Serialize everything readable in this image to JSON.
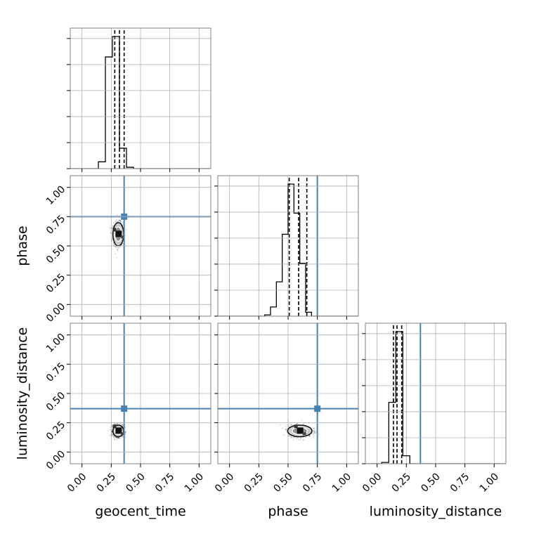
{
  "chart_data": {
    "type": "corner",
    "parameters": [
      "geocent_time",
      "phase",
      "luminosity_distance"
    ],
    "axis_labels": {
      "geocent_time": "geocent_time",
      "phase": "phase",
      "luminosity_distance": "luminosity_distance"
    },
    "xlim": [
      -0.1,
      1.1
    ],
    "ylim": [
      -0.1,
      1.1
    ],
    "tick_values": [
      0.0,
      0.25,
      0.5,
      0.75,
      1.0
    ],
    "tick_labels": [
      "0.00",
      "0.25",
      "0.50",
      "0.75",
      "1.00"
    ],
    "grid": true,
    "truths": {
      "geocent_time": 0.36,
      "phase": 0.75,
      "luminosity_distance": 0.37
    },
    "truth_color": "#4682b4",
    "histograms": {
      "geocent_time": {
        "bin_edges": [
          0.14,
          0.2,
          0.26,
          0.32,
          0.38,
          0.44,
          0.5
        ],
        "counts": [
          0.05,
          0.82,
          0.97,
          0.15,
          0.01,
          0.0
        ],
        "quantiles": [
          0.28,
          0.32,
          0.36
        ]
      },
      "phase": {
        "bin_edges": [
          0.3,
          0.35,
          0.4,
          0.45,
          0.5,
          0.55,
          0.6,
          0.65,
          0.7,
          0.75,
          0.8
        ],
        "counts": [
          0.01,
          0.07,
          0.26,
          0.62,
          1.0,
          0.78,
          0.4,
          0.03,
          0.0,
          0.0
        ],
        "quantiles": [
          0.51,
          0.59,
          0.66
        ]
      },
      "luminosity_distance": {
        "bin_edges": [
          0.04,
          0.1,
          0.16,
          0.22,
          0.28,
          0.34
        ],
        "counts": [
          0.01,
          0.46,
          0.99,
          0.06,
          0.0
        ],
        "quantiles": [
          0.14,
          0.17,
          0.21
        ]
      }
    },
    "scatter_panels": [
      {
        "x": "geocent_time",
        "y": "phase",
        "center": [
          0.31,
          0.6
        ],
        "spread": [
          0.04,
          0.09
        ]
      },
      {
        "x": "geocent_time",
        "y": "luminosity_distance",
        "center": [
          0.31,
          0.18
        ],
        "spread": [
          0.04,
          0.045
        ]
      },
      {
        "x": "phase",
        "y": "luminosity_distance",
        "center": [
          0.6,
          0.18
        ],
        "spread": [
          0.09,
          0.045
        ]
      }
    ]
  }
}
